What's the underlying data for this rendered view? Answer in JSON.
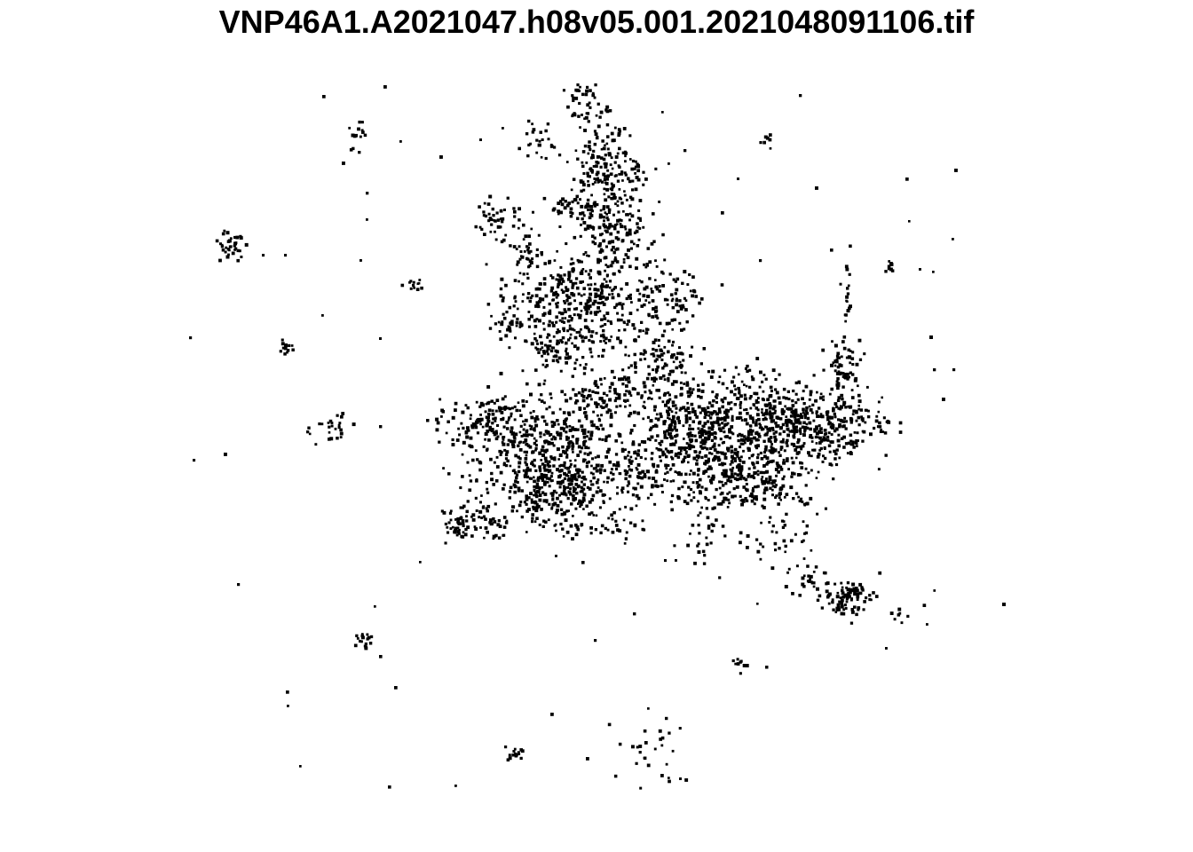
{
  "title": "VNP46A1.A2021047.h08v05.001.2021048091106.tif",
  "map": {
    "colors": {
      "background": "#ffffff",
      "lit_pixel": "#000000"
    }
  }
}
